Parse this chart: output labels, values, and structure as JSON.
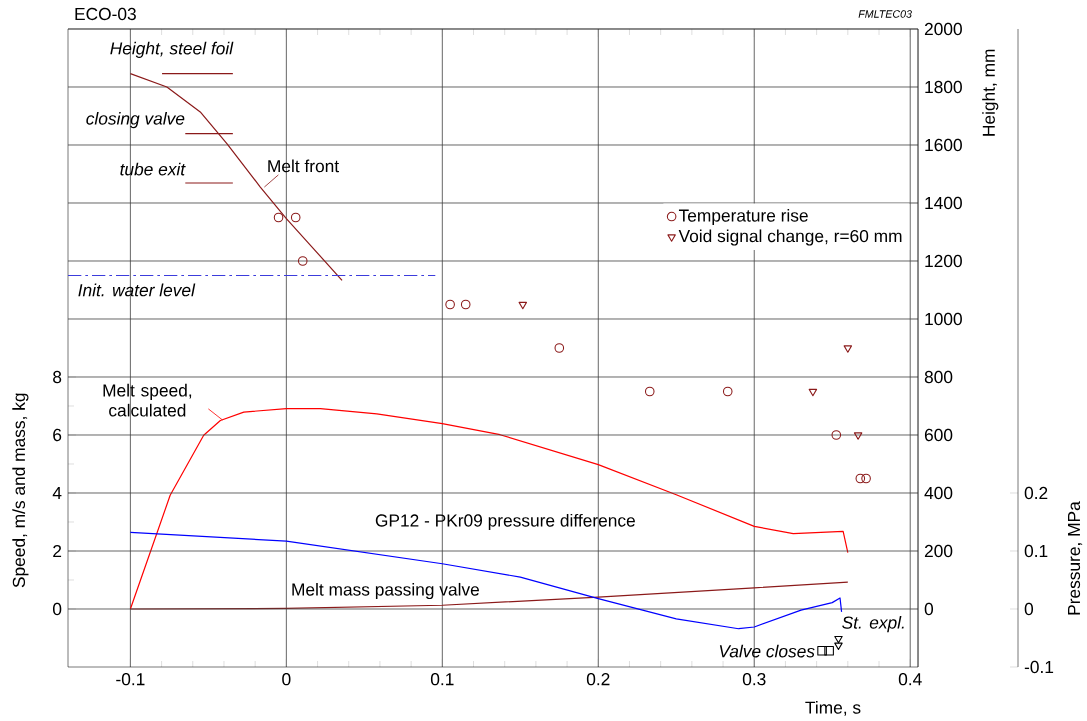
{
  "chart_data": {
    "type": "line",
    "annotations": [
      "ECO-03",
      "FMLTEC03"
    ],
    "xlabel": "Time, s",
    "ylabel": "Speed, m/s  and  mass, kg",
    "y2label": "Height, mm",
    "y3label": "Pressure,  MPa",
    "xlim": [
      -0.14,
      0.405
    ],
    "xticks": [
      -0.1,
      0,
      0.1,
      0.2,
      0.3,
      0.4
    ],
    "ylim": [
      -2,
      20
    ],
    "yticks": [
      0,
      2,
      4,
      6,
      8
    ],
    "y2lim": [
      -200,
      2000
    ],
    "y2ticks": [
      0,
      200,
      400,
      600,
      800,
      1000,
      1200,
      1400,
      1600,
      1800,
      2000
    ],
    "y3lim": [
      -0.1,
      1.0
    ],
    "y3ticks": [
      -0.1,
      0,
      0.1,
      0.2
    ],
    "grid": true,
    "legend": "right",
    "series": [
      {
        "name": "Melt front",
        "type": "line",
        "axis": "y2",
        "color": "#8b1a1a",
        "x": [
          -0.1,
          -0.0766,
          -0.0552,
          -0.038,
          -0.0167,
          0,
          0.0175,
          0.0357
        ],
        "values": [
          1846,
          1800,
          1714,
          1604,
          1455,
          1346,
          1242,
          1133
        ]
      },
      {
        "name": "Height, steel foil",
        "type": "line",
        "axis": "y2",
        "color": "#8b1a1a",
        "x": [
          -0.0797,
          -0.0343
        ],
        "values": [
          1846,
          1846
        ]
      },
      {
        "name": "closing valve",
        "type": "line",
        "axis": "y2",
        "color": "#8b1a1a",
        "x": [
          -0.0648,
          -0.0343
        ],
        "values": [
          1639,
          1639
        ]
      },
      {
        "name": "tube exit",
        "type": "line",
        "axis": "y2",
        "color": "#8b1a1a",
        "x": [
          -0.0648,
          -0.0343
        ],
        "values": [
          1469,
          1469
        ]
      },
      {
        "name": "Init. water level",
        "type": "line",
        "axis": "y2",
        "color": "#3c3cdc",
        "line_style": "dashed",
        "x": [
          -0.14,
          0.0955
        ],
        "values": [
          1150,
          1150
        ]
      },
      {
        "name": "Temperature rise",
        "type": "scatter",
        "axis": "y2",
        "color": "#8b1a1a",
        "marker": "circle",
        "x": [
          -0.005,
          0.006,
          0.0105,
          0.105,
          0.115,
          0.175,
          0.233,
          0.283,
          0.3526,
          0.368,
          0.3717
        ],
        "values": [
          1350,
          1350,
          1200,
          1050,
          1050,
          900,
          750,
          750,
          600,
          450,
          450
        ]
      },
      {
        "name": "Void signal change, r=60 mm",
        "type": "scatter",
        "axis": "y2",
        "color": "#8b1a1a",
        "marker": "triangle",
        "x": [
          0.1516,
          0.3376,
          0.36,
          0.3666
        ],
        "values": [
          1050,
          750,
          900,
          600
        ]
      },
      {
        "name": "Valve closes",
        "type": "scatter",
        "axis": "y2",
        "color": "#000000",
        "marker": "square",
        "x": [
          0.3435,
          0.348
        ],
        "values": [
          -144,
          -144
        ]
      },
      {
        "name": "St. expl.",
        "type": "scatter",
        "axis": "y2",
        "color": "#000000",
        "marker": "triangle",
        "x": [
          0.354,
          0.354
        ],
        "values": [
          -102,
          -125
        ]
      },
      {
        "name": "Melt speed, calculated",
        "color": "#ff0000",
        "x": [
          -0.1,
          -0.0745,
          -0.053,
          -0.0423,
          -0.0273,
          0,
          0.0218,
          0.058,
          0.1,
          0.137,
          0.2,
          0.25,
          0.3,
          0.325,
          0.357,
          0.36
        ],
        "values": [
          0,
          3.92,
          5.99,
          6.5,
          6.79,
          6.91,
          6.91,
          6.73,
          6.39,
          6.01,
          4.98,
          3.94,
          2.85,
          2.6,
          2.68,
          1.94
        ]
      },
      {
        "name": "Melt mass passing valve",
        "color": "#8b1a1a",
        "x": [
          -0.1,
          0,
          0.1,
          0.2,
          0.3,
          0.36
        ],
        "values": [
          0,
          0.02,
          0.13,
          0.41,
          0.73,
          0.93
        ]
      },
      {
        "name": "GP12 - PKr09 pressure difference",
        "axis": "y3",
        "color": "#0000ff",
        "x": [
          -0.1,
          0,
          0.1,
          0.15,
          0.2,
          0.25,
          0.29,
          0.3,
          0.33,
          0.35,
          0.355,
          0.356
        ],
        "values": [
          0.132,
          0.117,
          0.078,
          0.055,
          0.018,
          -0.017,
          -0.034,
          -0.031,
          -0.002,
          0.011,
          0.019,
          -0.005
        ]
      }
    ]
  }
}
